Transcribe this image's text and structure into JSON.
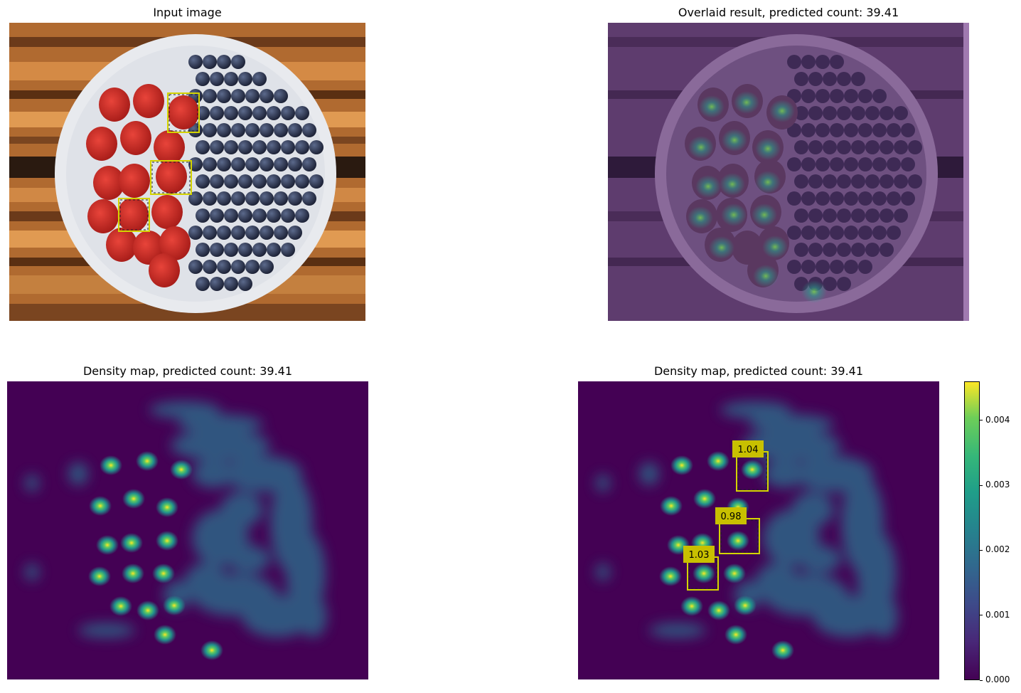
{
  "titles": {
    "input": "Input image",
    "overlay": "Overlaid result, predicted count: 39.41",
    "density_left": "Density map, predicted count: 39.41",
    "density_right": "Density map, predicted count: 39.41"
  },
  "exemplar_counts": [
    "1.04",
    "0.98",
    "1.03"
  ],
  "colors": {
    "viridis_low": "#440154",
    "viridis_mid": "#21918c",
    "viridis_high": "#fde725",
    "box": "#d4d400",
    "label_bg": "#c8c000"
  },
  "chart_data": {
    "type": "heatmap",
    "colorbar": {
      "min": 0.0,
      "max": 0.0046,
      "ticks": [
        "0.000",
        "0.001",
        "0.002",
        "0.003",
        "0.004"
      ],
      "tick_values": [
        0.0,
        0.001,
        0.002,
        0.003,
        0.004
      ]
    },
    "predicted_count": 39.41,
    "exemplar_box_counts": [
      1.04,
      0.98,
      1.03
    ]
  }
}
